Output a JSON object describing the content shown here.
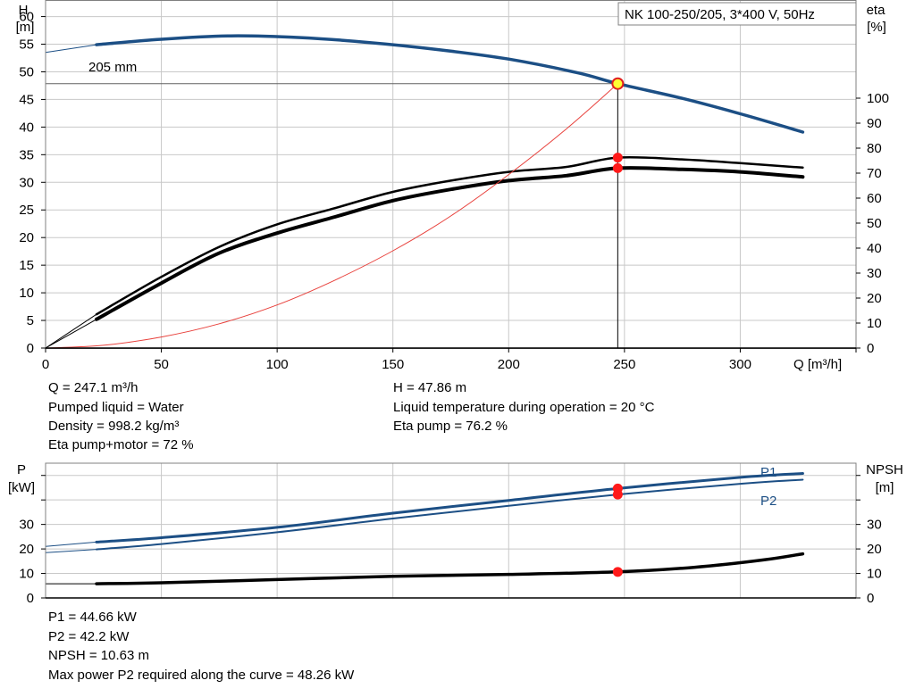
{
  "chart_data": [
    {
      "type": "line",
      "title": "NK 100-250/205, 3*400 V, 50Hz",
      "ylabel": "H",
      "ylabel_unit": "[m]",
      "y2label": "eta",
      "y2label_unit": "[%]",
      "xlabel": "Q [m³/h]",
      "xlim": [
        0,
        350
      ],
      "ylim": [
        0,
        63
      ],
      "y2lim": [
        0,
        100
      ],
      "x_ticks": [
        0,
        50,
        100,
        150,
        200,
        250,
        300
      ],
      "y_ticks": [
        0,
        5,
        10,
        15,
        20,
        25,
        30,
        35,
        40,
        45,
        50,
        55,
        60
      ],
      "y2_ticks": [
        0,
        10,
        20,
        30,
        40,
        50,
        60,
        70,
        80,
        90,
        100
      ],
      "grid": true,
      "annotations": [
        {
          "text": "205 mm",
          "x": 20,
          "y": 55.8
        }
      ],
      "series": [
        {
          "name": "",
          "role": "head",
          "color": "#1c4f85",
          "x": [
            22,
            50,
            80,
            110,
            140,
            170,
            200,
            230,
            247.1,
            275,
            300,
            327
          ],
          "y": [
            54.9,
            55.9,
            56.5,
            56.2,
            55.3,
            54.0,
            52.3,
            49.8,
            47.86,
            45.2,
            42.4,
            39.1
          ]
        },
        {
          "name": "",
          "role": "head-extrapolated",
          "color": "#1c4f85",
          "x": [
            0,
            22
          ],
          "y": [
            53.5,
            54.9
          ]
        },
        {
          "name": "",
          "role": "eta-pump",
          "color": "#000000",
          "x": [
            22,
            50,
            75,
            100,
            125,
            150,
            175,
            200,
            225,
            247.1,
            275,
            300,
            327
          ],
          "y": [
            13.5,
            28.5,
            40.5,
            49.5,
            56.0,
            62.5,
            67.0,
            70.5,
            72.5,
            76.2,
            75.5,
            74.0,
            72.2
          ]
        },
        {
          "name": "",
          "role": "eta-pump-motor",
          "color": "#000000",
          "x": [
            22,
            50,
            75,
            100,
            125,
            150,
            175,
            200,
            225,
            247.1,
            275,
            300,
            327
          ],
          "y": [
            11.5,
            26.0,
            38.0,
            46.0,
            52.5,
            59.0,
            63.5,
            67.0,
            69.0,
            72.0,
            71.5,
            70.5,
            68.5
          ]
        },
        {
          "name": "",
          "role": "eta-extrapolated",
          "color": "#000000",
          "x": [
            0,
            22
          ],
          "y": [
            0,
            13.5
          ]
        },
        {
          "name": "",
          "role": "system-curve",
          "color": "#e8413c",
          "x": [
            0,
            25,
            50,
            75,
            100,
            125,
            150,
            175,
            200,
            225,
            247.1
          ],
          "y": [
            0,
            0.5,
            2.0,
            4.4,
            7.8,
            12.3,
            17.6,
            23.9,
            31.4,
            39.7,
            47.86
          ]
        }
      ],
      "duty_point": {
        "Q": 247.1,
        "H": 47.86,
        "eta_pump": 76.2,
        "eta_pump_motor": 72
      }
    },
    {
      "type": "line",
      "ylabel": "P",
      "ylabel_unit": "[kW]",
      "y2label": "NPSH",
      "y2label_unit": "[m]",
      "xlim": [
        0,
        350
      ],
      "ylim": [
        0,
        55
      ],
      "y2lim": [
        0,
        55
      ],
      "y_ticks": [
        0,
        10,
        20,
        30
      ],
      "y2_ticks": [
        0,
        10,
        20,
        30
      ],
      "grid": true,
      "series": [
        {
          "name": "P1",
          "color": "#1c4f85",
          "x": [
            22,
            50,
            100,
            150,
            200,
            247.1,
            300,
            327
          ],
          "y": [
            22.8,
            24.6,
            28.8,
            34.6,
            39.8,
            44.66,
            49.2,
            50.8
          ]
        },
        {
          "name": "P2",
          "color": "#1c4f85",
          "x": [
            22,
            50,
            100,
            150,
            200,
            247.1,
            300,
            327
          ],
          "y": [
            19.8,
            22.0,
            26.8,
            32.4,
            37.6,
            42.2,
            46.6,
            48.26
          ]
        },
        {
          "name": "",
          "role": "P1-extrapolated",
          "color": "#1c4f85",
          "x": [
            0,
            22
          ],
          "y": [
            21.0,
            22.8
          ]
        },
        {
          "name": "",
          "role": "P2-extrapolated",
          "color": "#1c4f85",
          "x": [
            0,
            22
          ],
          "y": [
            18.5,
            19.8
          ]
        },
        {
          "name": "",
          "role": "npsh",
          "color": "#000000",
          "x": [
            22,
            50,
            100,
            150,
            200,
            247.1,
            280,
            310,
            327
          ],
          "y": [
            5.8,
            6.2,
            7.5,
            8.8,
            9.6,
            10.63,
            12.5,
            15.5,
            18.0
          ]
        },
        {
          "name": "",
          "role": "npsh-extrapolated",
          "color": "#000000",
          "x": [
            0,
            22
          ],
          "y": [
            5.8,
            5.8
          ]
        }
      ]
    }
  ],
  "info_top": {
    "q": "Q = 247.1 m³/h",
    "pumped": "Pumped liquid = Water",
    "density": "Density = 998.2 kg/m³",
    "eta_pm": "Eta pump+motor = 72 %",
    "h": "H = 47.86 m",
    "temp": "Liquid temperature during operation = 20 °C",
    "eta_p": "Eta pump = 76.2 %"
  },
  "info_bottom": {
    "p1": "P1 = 44.66 kW",
    "p2": "P2 = 42.2 kW",
    "npsh": "NPSH = 10.63 m",
    "max": "Max power P2 required along the curve = 48.26 kW"
  },
  "colors": {
    "curve_blue": "#1c4f85",
    "system": "#e8413c",
    "grid": "#c8c8c8",
    "marker_red": "#ff1a1a",
    "marker_yellow": "#ffff33"
  }
}
